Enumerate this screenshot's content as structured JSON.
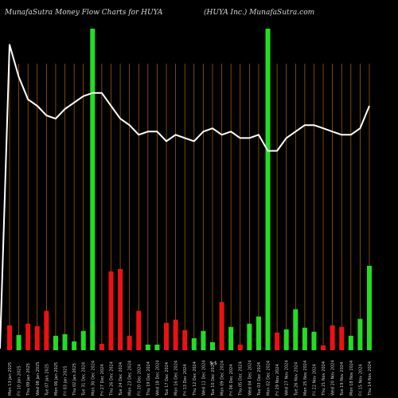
{
  "header": {
    "title": "MunafaSutra  Money Flow  Charts for HUYA",
    "subtitle": "(HUYA Inc.) MunafaSutra.com"
  },
  "colors": {
    "background": "#000000",
    "grid": "#b06a00",
    "up": "#22dd22",
    "down": "#ee1111",
    "line": "#ffffff"
  },
  "chart_data": {
    "type": "bar",
    "title": "MunafaSutra  Money Flow  Charts for HUYA",
    "subtitle": "(HUYA Inc.) MunafaSutra.com",
    "categories": [
      "Mon 13 Jan 2025",
      "Fri 10 Jan 2025",
      "Thu 09 Jan 2025",
      "Wed 08 Jan 2025",
      "Tue 07 Jan 2025",
      "Mon 06 Jan 2025",
      "Fri 03 Jan 2025",
      "Thu 02 Jan 2025",
      "Tue 31 Dec 2024",
      "Mon 30 Dec 2024",
      "Fri 27 Dec 2024",
      "Thu 26 Dec 2024",
      "Tue 24 Dec 2024",
      "Mon 23 Dec 2024",
      "Fri 20 Dec 2024",
      "Thu 19 Dec 2024",
      "Wed 18 Dec 2024",
      "Tue 17 Dec 2024",
      "Mon 16 Dec 2024",
      "Fri 13 Dec 2024",
      "Thu 12 Dec 2024",
      "Wed 11 Dec 2024",
      "Tue 10 Dec 2024",
      "Mon 09 Dec 2024",
      "Fri 06 Dec 2024",
      "Thu 05 Dec 2024",
      "Wed 04 Dec 2024",
      "Tue 03 Dec 2024",
      "Mon 02 Dec 2024",
      "Fri 29 Nov 2024",
      "Wed 27 Nov 2024",
      "Tue 26 Nov 2024",
      "Mon 25 Nov 2024",
      "Fri 22 Nov 2024",
      "Thu 21 Nov 2024",
      "Wed 20 Nov 2024",
      "Tue 19 Nov 2024",
      "Mon 18 Nov 2024",
      "Fri 15 Nov 2024",
      "Thu 14 Nov 2024"
    ],
    "flow_values": [
      31,
      19,
      33,
      30,
      49,
      18,
      20,
      11,
      24,
      400,
      8,
      98,
      101,
      18,
      49,
      7,
      7,
      34,
      38,
      25,
      15,
      24,
      10,
      60,
      29,
      7,
      33,
      42,
      400,
      22,
      26,
      51,
      28,
      23,
      6,
      31,
      29,
      18,
      39,
      105
    ],
    "flow_direction": [
      "down",
      "up",
      "down",
      "down",
      "down",
      "up",
      "up",
      "up",
      "up",
      "up",
      "down",
      "down",
      "down",
      "down",
      "down",
      "up",
      "up",
      "down",
      "down",
      "down",
      "up",
      "up",
      "up",
      "down",
      "up",
      "down",
      "up",
      "up",
      "up",
      "down",
      "up",
      "up",
      "up",
      "up",
      "down",
      "down",
      "down",
      "up",
      "up",
      "up"
    ],
    "price_index": [
      95,
      85,
      78,
      76,
      73,
      72,
      75,
      77,
      79,
      80,
      80,
      76,
      72,
      70,
      67,
      68,
      68,
      65,
      67,
      66,
      65,
      68,
      69,
      67,
      68,
      66,
      66,
      67,
      62,
      62,
      66,
      68,
      70,
      70,
      69,
      68,
      67,
      67,
      69,
      76
    ],
    "ylim": [
      0,
      100
    ],
    "grid": true,
    "center_label": "$ $"
  }
}
